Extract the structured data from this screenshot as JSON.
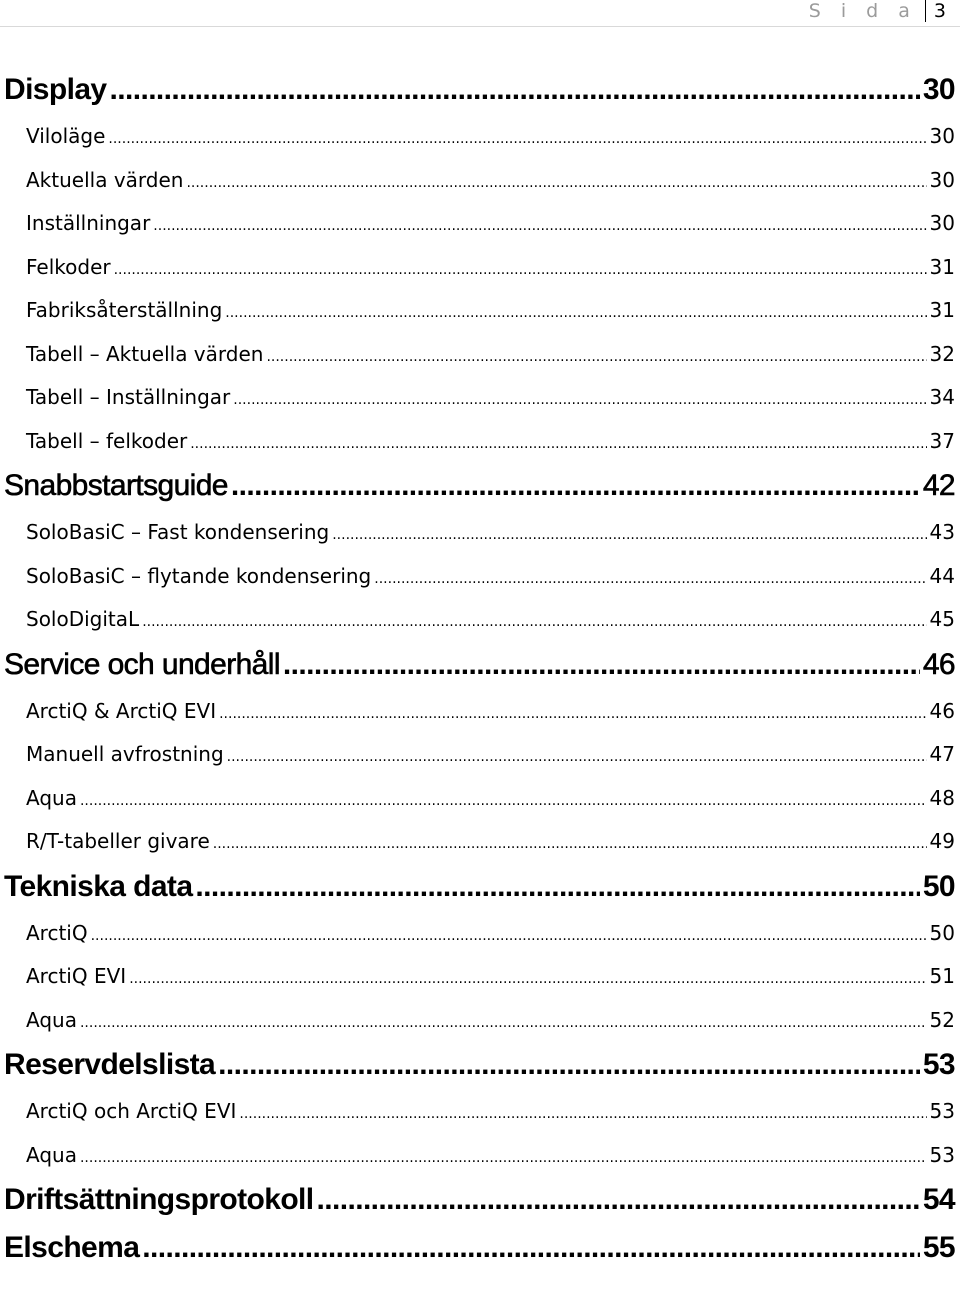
{
  "header": {
    "page_word": "S i d a",
    "page_number": "3"
  },
  "toc": [
    {
      "level": 1,
      "title": "Display",
      "page": "30"
    },
    {
      "level": 2,
      "title": "Viloläge",
      "page": "30"
    },
    {
      "level": 2,
      "title": "Aktuella värden",
      "page": "30"
    },
    {
      "level": 2,
      "title": "Inställningar",
      "page": "30"
    },
    {
      "level": 2,
      "title": "Felkoder",
      "page": "31"
    },
    {
      "level": 2,
      "title": "Fabriksåterställning",
      "page": "31"
    },
    {
      "level": 2,
      "title": "Tabell – Aktuella värden",
      "page": "32"
    },
    {
      "level": 2,
      "title": "Tabell – Inställningar",
      "page": "34"
    },
    {
      "level": 2,
      "title": "Tabell – felkoder",
      "page": "37"
    },
    {
      "level": 1,
      "title": "Snabbstartsguide",
      "page": "42"
    },
    {
      "level": 2,
      "title": "SoloBasiC – Fast kondensering",
      "page": "43"
    },
    {
      "level": 2,
      "title": "SoloBasiC – flytande kondensering",
      "page": "44"
    },
    {
      "level": 2,
      "title": "SoloDigitaL",
      "page": "45"
    },
    {
      "level": 1,
      "title": "Service och underhåll",
      "page": "46"
    },
    {
      "level": 2,
      "title": "ArctiQ & ArctiQ EVI",
      "page": "46"
    },
    {
      "level": 2,
      "title": "Manuell avfrostning",
      "page": "47"
    },
    {
      "level": 2,
      "title": "Aqua",
      "page": "48"
    },
    {
      "level": 2,
      "title": "R/T-tabeller givare",
      "page": "49"
    },
    {
      "level": 1,
      "title": "Tekniska data",
      "page": "50"
    },
    {
      "level": 2,
      "title": "ArctiQ",
      "page": "50"
    },
    {
      "level": 2,
      "title": "ArctiQ EVI",
      "page": "51"
    },
    {
      "level": 2,
      "title": "Aqua",
      "page": "52"
    },
    {
      "level": 1,
      "title": "Reservdelslista",
      "page": "53"
    },
    {
      "level": 2,
      "title": "ArctiQ och ArctiQ EVI",
      "page": "53"
    },
    {
      "level": 2,
      "title": "Aqua",
      "page": "53"
    },
    {
      "level": 1,
      "title": "Driftsättningsprotokoll",
      "page": "54"
    },
    {
      "level": 1,
      "title": "Elschema",
      "page": "55"
    }
  ]
}
